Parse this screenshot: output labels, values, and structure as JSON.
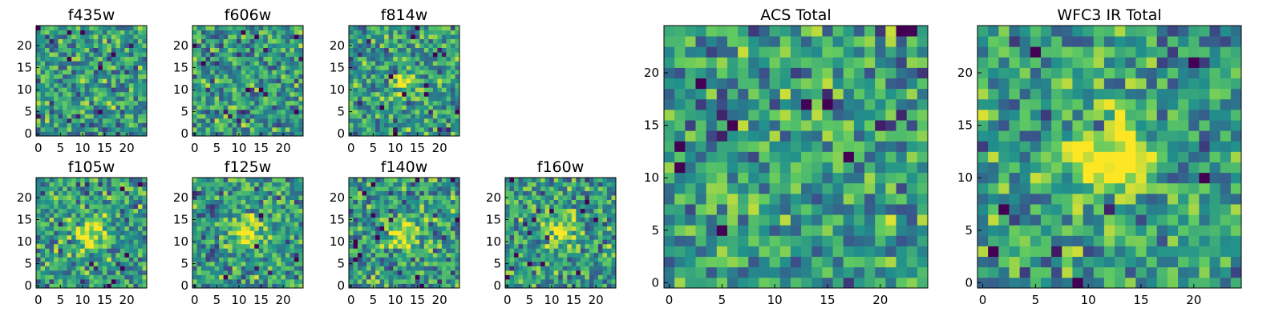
{
  "chart_data": [
    {
      "type": "heatmap",
      "title": "f435w",
      "xticks": [
        "0",
        "5",
        "10",
        "15",
        "20"
      ],
      "yticks": [
        "0",
        "5",
        "10",
        "15",
        "20"
      ],
      "xlim": [
        0,
        25
      ],
      "ylim": [
        0,
        25
      ],
      "grid": false,
      "colormap": "viridis",
      "seed": 11,
      "bright_center": 0.0
    },
    {
      "type": "heatmap",
      "title": "f606w",
      "xticks": [
        "0",
        "5",
        "10",
        "15",
        "20"
      ],
      "yticks": [
        "0",
        "5",
        "10",
        "15",
        "20"
      ],
      "xlim": [
        0,
        25
      ],
      "ylim": [
        0,
        25
      ],
      "grid": false,
      "colormap": "viridis",
      "seed": 23,
      "bright_center": 0.0
    },
    {
      "type": "heatmap",
      "title": "f814w",
      "xticks": [
        "0",
        "5",
        "10",
        "15",
        "20"
      ],
      "yticks": [
        "0",
        "5",
        "10",
        "15",
        "20"
      ],
      "xlim": [
        0,
        25
      ],
      "ylim": [
        0,
        25
      ],
      "grid": false,
      "colormap": "viridis",
      "seed": 37,
      "bright_center": 0.25
    },
    {
      "type": "heatmap",
      "title": "f105w",
      "xticks": [
        "0",
        "5",
        "10",
        "15",
        "20"
      ],
      "yticks": [
        "0",
        "5",
        "10",
        "15",
        "20"
      ],
      "xlim": [
        0,
        25
      ],
      "ylim": [
        0,
        25
      ],
      "grid": false,
      "colormap": "viridis",
      "seed": 41,
      "bright_center": 0.45
    },
    {
      "type": "heatmap",
      "title": "f125w",
      "xticks": [
        "0",
        "5",
        "10",
        "15",
        "20"
      ],
      "yticks": [
        "0",
        "5",
        "10",
        "15",
        "20"
      ],
      "xlim": [
        0,
        25
      ],
      "ylim": [
        0,
        25
      ],
      "grid": false,
      "colormap": "viridis",
      "seed": 53,
      "bright_center": 0.45
    },
    {
      "type": "heatmap",
      "title": "f140w",
      "xticks": [
        "0",
        "5",
        "10",
        "15",
        "20"
      ],
      "yticks": [
        "0",
        "5",
        "10",
        "15",
        "20"
      ],
      "xlim": [
        0,
        25
      ],
      "ylim": [
        0,
        25
      ],
      "grid": false,
      "colormap": "viridis",
      "seed": 67,
      "bright_center": 0.45
    },
    {
      "type": "heatmap",
      "title": "f160w",
      "xticks": [
        "0",
        "5",
        "10",
        "15",
        "20"
      ],
      "yticks": [
        "0",
        "5",
        "10",
        "15",
        "20"
      ],
      "xlim": [
        0,
        25
      ],
      "ylim": [
        0,
        25
      ],
      "grid": false,
      "colormap": "viridis",
      "seed": 79,
      "bright_center": 0.35
    },
    {
      "type": "heatmap",
      "title": "ACS Total",
      "xticks": [
        "0",
        "5",
        "10",
        "15",
        "20"
      ],
      "yticks": [
        "0",
        "5",
        "10",
        "15",
        "20"
      ],
      "xlim": [
        0,
        25
      ],
      "ylim": [
        0,
        25
      ],
      "grid": false,
      "colormap": "viridis",
      "seed": 89,
      "bright_center": 0.1
    },
    {
      "type": "heatmap",
      "title": "WFC3 IR Total",
      "xticks": [
        "0",
        "5",
        "10",
        "15",
        "20"
      ],
      "yticks": [
        "0",
        "5",
        "10",
        "15",
        "20"
      ],
      "xlim": [
        0,
        25
      ],
      "ylim": [
        0,
        25
      ],
      "grid": false,
      "colormap": "viridis",
      "seed": 97,
      "bright_center": 0.6
    }
  ]
}
